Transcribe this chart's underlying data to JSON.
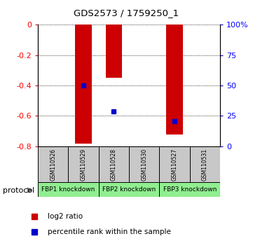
{
  "title": "GDS2573 / 1759250_1",
  "samples": [
    "GSM110526",
    "GSM110529",
    "GSM110528",
    "GSM110530",
    "GSM110527",
    "GSM110531"
  ],
  "log2_ratios": [
    0,
    -0.78,
    -0.35,
    0,
    -0.72,
    0
  ],
  "percentile_ranks_left": [
    null,
    -0.4,
    -0.57,
    null,
    -0.635,
    null
  ],
  "ylim_left": [
    -0.8,
    0
  ],
  "ylim_right": [
    0,
    100
  ],
  "yticks_left": [
    0,
    -0.2,
    -0.4,
    -0.6,
    -0.8
  ],
  "yticks_right": [
    0,
    25,
    50,
    75,
    100
  ],
  "bar_color": "#CC0000",
  "dot_color": "#0000CC",
  "background_color": "#ffffff",
  "sample_box_color": "#C8C8C8",
  "legend_bar_label": "log2 ratio",
  "legend_dot_label": "percentile rank within the sample",
  "protocol_label": "protocol",
  "proto_info": [
    [
      0,
      2,
      "FBP1 knockdown"
    ],
    [
      2,
      4,
      "FBP2 knockdown"
    ],
    [
      4,
      6,
      "FBP3 knockdown"
    ]
  ]
}
